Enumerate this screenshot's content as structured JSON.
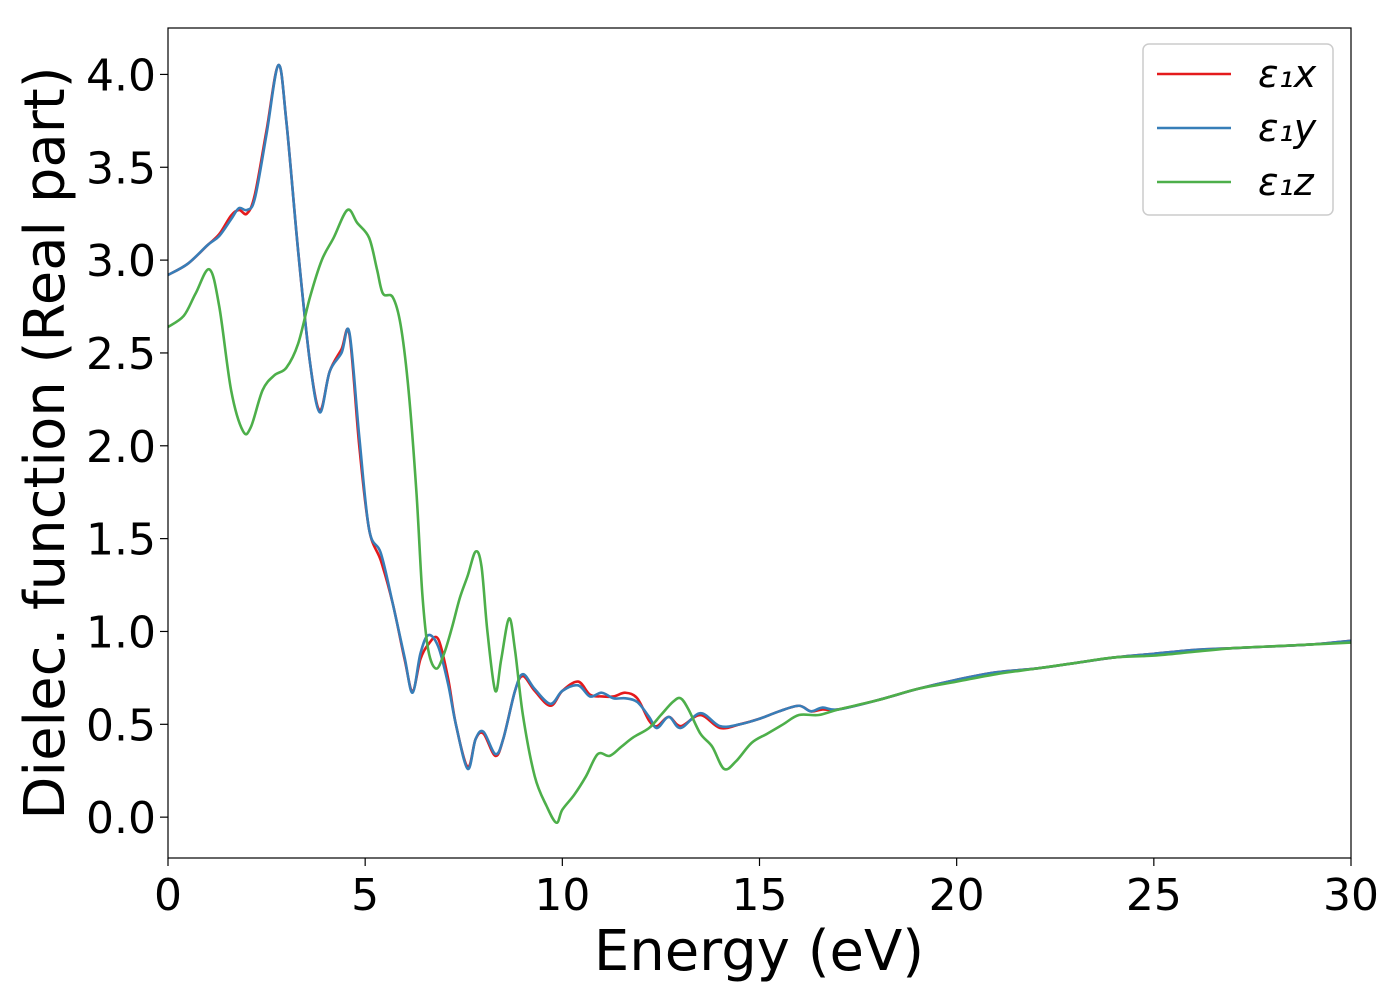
{
  "chart_data": {
    "type": "line",
    "title": "",
    "xlabel": "Energy (eV)",
    "ylabel": "Dielec. function (Real part)",
    "xlim": [
      0,
      30
    ],
    "ylim": [
      -0.22,
      4.25
    ],
    "xticks": [
      0,
      5,
      10,
      15,
      20,
      25,
      30
    ],
    "yticks": [
      0.0,
      0.5,
      1.0,
      1.5,
      2.0,
      2.5,
      3.0,
      3.5,
      4.0
    ],
    "xtick_labels": [
      "0",
      "5",
      "10",
      "15",
      "20",
      "25",
      "30"
    ],
    "ytick_labels": [
      "0.0",
      "0.5",
      "1.0",
      "1.5",
      "2.0",
      "2.5",
      "3.0",
      "3.5",
      "4.0"
    ],
    "grid": false,
    "legend_position": "top-right",
    "series": [
      {
        "name": "ε₁x",
        "color": "#e41a1c",
        "points": [
          [
            0,
            2.92
          ],
          [
            0.5,
            2.98
          ],
          [
            1,
            3.08
          ],
          [
            1.3,
            3.14
          ],
          [
            1.6,
            3.24
          ],
          [
            1.8,
            3.27
          ],
          [
            2.0,
            3.25
          ],
          [
            2.2,
            3.35
          ],
          [
            2.5,
            3.7
          ],
          [
            2.8,
            4.05
          ],
          [
            3.0,
            3.75
          ],
          [
            3.3,
            3.05
          ],
          [
            3.6,
            2.45
          ],
          [
            3.85,
            2.19
          ],
          [
            4.1,
            2.4
          ],
          [
            4.4,
            2.52
          ],
          [
            4.6,
            2.6
          ],
          [
            4.85,
            2.0
          ],
          [
            5.1,
            1.55
          ],
          [
            5.4,
            1.38
          ],
          [
            5.7,
            1.15
          ],
          [
            6.0,
            0.85
          ],
          [
            6.2,
            0.68
          ],
          [
            6.4,
            0.85
          ],
          [
            6.6,
            0.93
          ],
          [
            6.85,
            0.96
          ],
          [
            7.1,
            0.75
          ],
          [
            7.3,
            0.5
          ],
          [
            7.6,
            0.27
          ],
          [
            7.8,
            0.42
          ],
          [
            8.0,
            0.45
          ],
          [
            8.3,
            0.33
          ],
          [
            8.5,
            0.42
          ],
          [
            8.8,
            0.68
          ],
          [
            9.0,
            0.76
          ],
          [
            9.3,
            0.68
          ],
          [
            9.7,
            0.6
          ],
          [
            10.0,
            0.68
          ],
          [
            10.4,
            0.73
          ],
          [
            10.7,
            0.66
          ],
          [
            11.0,
            0.65
          ],
          [
            11.3,
            0.65
          ],
          [
            11.6,
            0.67
          ],
          [
            11.9,
            0.64
          ],
          [
            12.2,
            0.52
          ],
          [
            12.4,
            0.49
          ],
          [
            12.7,
            0.54
          ],
          [
            13.0,
            0.49
          ],
          [
            13.5,
            0.55
          ],
          [
            14.0,
            0.48
          ],
          [
            14.5,
            0.5
          ],
          [
            15.0,
            0.53
          ],
          [
            15.5,
            0.57
          ],
          [
            16.0,
            0.6
          ],
          [
            16.3,
            0.57
          ],
          [
            16.6,
            0.58
          ],
          [
            17,
            0.58
          ],
          [
            18,
            0.63
          ],
          [
            19,
            0.69
          ],
          [
            20,
            0.74
          ],
          [
            21,
            0.78
          ],
          [
            22,
            0.8
          ],
          [
            23,
            0.83
          ],
          [
            24,
            0.86
          ],
          [
            25,
            0.88
          ],
          [
            26,
            0.9
          ],
          [
            27,
            0.91
          ],
          [
            28,
            0.92
          ],
          [
            29,
            0.93
          ],
          [
            30,
            0.95
          ]
        ]
      },
      {
        "name": "ε₁y",
        "color": "#377eb8",
        "points": [
          [
            0,
            2.92
          ],
          [
            0.5,
            2.98
          ],
          [
            1,
            3.08
          ],
          [
            1.3,
            3.13
          ],
          [
            1.6,
            3.22
          ],
          [
            1.8,
            3.28
          ],
          [
            2.0,
            3.27
          ],
          [
            2.2,
            3.33
          ],
          [
            2.5,
            3.68
          ],
          [
            2.8,
            4.05
          ],
          [
            3.0,
            3.75
          ],
          [
            3.3,
            3.05
          ],
          [
            3.6,
            2.45
          ],
          [
            3.85,
            2.18
          ],
          [
            4.1,
            2.4
          ],
          [
            4.4,
            2.5
          ],
          [
            4.6,
            2.61
          ],
          [
            4.85,
            2.05
          ],
          [
            5.1,
            1.55
          ],
          [
            5.4,
            1.42
          ],
          [
            5.7,
            1.15
          ],
          [
            6.0,
            0.86
          ],
          [
            6.2,
            0.67
          ],
          [
            6.4,
            0.88
          ],
          [
            6.6,
            0.98
          ],
          [
            6.85,
            0.92
          ],
          [
            7.1,
            0.72
          ],
          [
            7.3,
            0.5
          ],
          [
            7.6,
            0.26
          ],
          [
            7.8,
            0.42
          ],
          [
            8.0,
            0.46
          ],
          [
            8.3,
            0.34
          ],
          [
            8.5,
            0.42
          ],
          [
            8.8,
            0.68
          ],
          [
            9.0,
            0.77
          ],
          [
            9.3,
            0.69
          ],
          [
            9.7,
            0.61
          ],
          [
            10.0,
            0.68
          ],
          [
            10.4,
            0.71
          ],
          [
            10.7,
            0.65
          ],
          [
            11.0,
            0.67
          ],
          [
            11.3,
            0.64
          ],
          [
            11.6,
            0.64
          ],
          [
            11.9,
            0.62
          ],
          [
            12.2,
            0.54
          ],
          [
            12.4,
            0.48
          ],
          [
            12.7,
            0.54
          ],
          [
            13.0,
            0.48
          ],
          [
            13.5,
            0.56
          ],
          [
            14.0,
            0.49
          ],
          [
            14.5,
            0.5
          ],
          [
            15.0,
            0.53
          ],
          [
            15.5,
            0.57
          ],
          [
            16.0,
            0.6
          ],
          [
            16.3,
            0.57
          ],
          [
            16.6,
            0.59
          ],
          [
            17,
            0.58
          ],
          [
            18,
            0.63
          ],
          [
            19,
            0.69
          ],
          [
            20,
            0.74
          ],
          [
            21,
            0.78
          ],
          [
            22,
            0.8
          ],
          [
            23,
            0.83
          ],
          [
            24,
            0.86
          ],
          [
            25,
            0.88
          ],
          [
            26,
            0.9
          ],
          [
            27,
            0.91
          ],
          [
            28,
            0.92
          ],
          [
            29,
            0.93
          ],
          [
            30,
            0.95
          ]
        ]
      },
      {
        "name": "ε₁z",
        "color": "#4daf4a",
        "points": [
          [
            0,
            2.64
          ],
          [
            0.4,
            2.7
          ],
          [
            0.7,
            2.82
          ],
          [
            1.05,
            2.95
          ],
          [
            1.3,
            2.75
          ],
          [
            1.6,
            2.3
          ],
          [
            1.9,
            2.08
          ],
          [
            2.1,
            2.1
          ],
          [
            2.4,
            2.3
          ],
          [
            2.7,
            2.38
          ],
          [
            3.0,
            2.42
          ],
          [
            3.3,
            2.55
          ],
          [
            3.6,
            2.8
          ],
          [
            3.9,
            3.0
          ],
          [
            4.2,
            3.12
          ],
          [
            4.55,
            3.27
          ],
          [
            4.8,
            3.2
          ],
          [
            5.1,
            3.12
          ],
          [
            5.3,
            2.95
          ],
          [
            5.45,
            2.82
          ],
          [
            5.7,
            2.8
          ],
          [
            5.9,
            2.65
          ],
          [
            6.1,
            2.3
          ],
          [
            6.3,
            1.75
          ],
          [
            6.45,
            1.2
          ],
          [
            6.6,
            0.9
          ],
          [
            6.8,
            0.8
          ],
          [
            7.0,
            0.88
          ],
          [
            7.2,
            1.02
          ],
          [
            7.4,
            1.18
          ],
          [
            7.6,
            1.3
          ],
          [
            7.8,
            1.43
          ],
          [
            7.95,
            1.35
          ],
          [
            8.1,
            1.0
          ],
          [
            8.3,
            0.68
          ],
          [
            8.45,
            0.85
          ],
          [
            8.65,
            1.07
          ],
          [
            8.8,
            0.9
          ],
          [
            9.0,
            0.55
          ],
          [
            9.3,
            0.22
          ],
          [
            9.6,
            0.06
          ],
          [
            9.85,
            -0.03
          ],
          [
            10.0,
            0.04
          ],
          [
            10.3,
            0.12
          ],
          [
            10.6,
            0.22
          ],
          [
            10.9,
            0.34
          ],
          [
            11.2,
            0.33
          ],
          [
            11.5,
            0.38
          ],
          [
            11.8,
            0.43
          ],
          [
            12.2,
            0.48
          ],
          [
            12.5,
            0.55
          ],
          [
            12.8,
            0.62
          ],
          [
            13.0,
            0.64
          ],
          [
            13.2,
            0.58
          ],
          [
            13.5,
            0.45
          ],
          [
            13.8,
            0.38
          ],
          [
            14.1,
            0.26
          ],
          [
            14.4,
            0.3
          ],
          [
            14.8,
            0.4
          ],
          [
            15.2,
            0.45
          ],
          [
            15.6,
            0.5
          ],
          [
            16.0,
            0.55
          ],
          [
            16.5,
            0.55
          ],
          [
            17,
            0.58
          ],
          [
            18,
            0.63
          ],
          [
            19,
            0.69
          ],
          [
            20,
            0.73
          ],
          [
            21,
            0.77
          ],
          [
            22,
            0.8
          ],
          [
            23,
            0.83
          ],
          [
            24,
            0.86
          ],
          [
            25,
            0.87
          ],
          [
            26,
            0.89
          ],
          [
            27,
            0.91
          ],
          [
            28,
            0.92
          ],
          [
            29,
            0.93
          ],
          [
            30,
            0.94
          ]
        ]
      }
    ]
  }
}
